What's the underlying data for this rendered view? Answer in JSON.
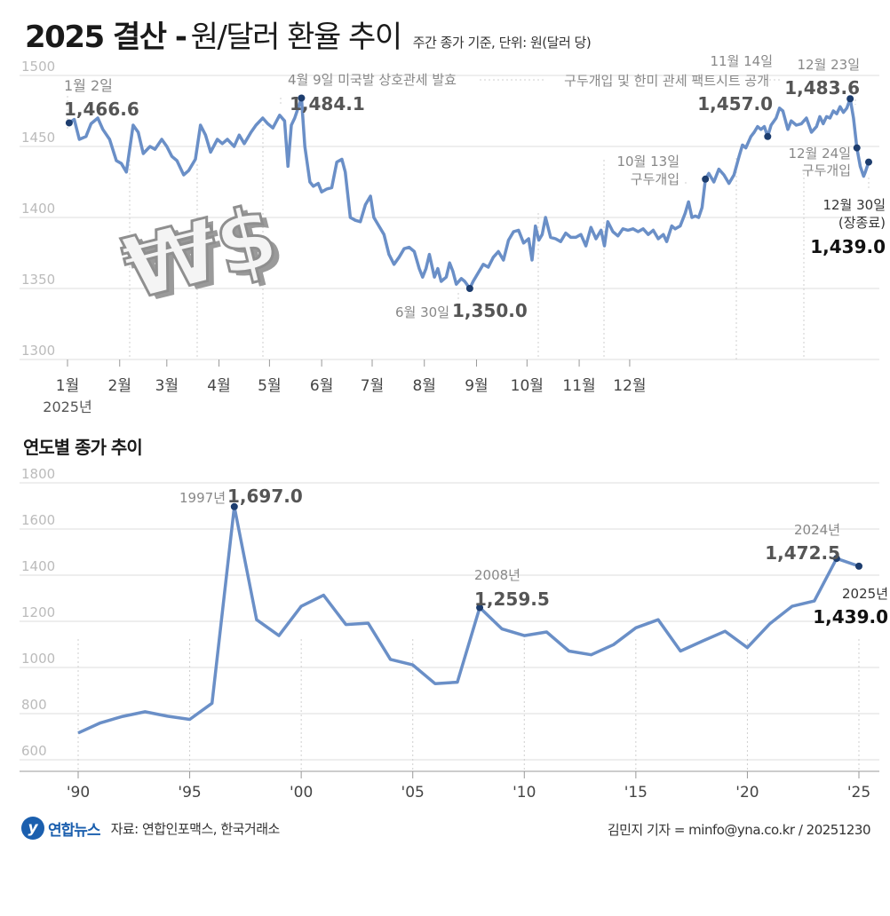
{
  "header": {
    "title_bold": "2025 결산 -",
    "title_rest": "원/달러 환율 추이",
    "note": "주간 종가 기준, 단위: 원(달러 당)"
  },
  "section2_title": "연도별 종가 추이",
  "colors": {
    "line": "#6a8fc7",
    "dot": "#1d3d6e",
    "grid": "#d9d9d9",
    "axis_text": "#bbbbbb",
    "label": "#888888",
    "value": "#555555",
    "value_final": "#111111"
  },
  "icon": "won-dollar-3d-icon",
  "chart_data": [
    {
      "type": "line",
      "title": "",
      "xlabel": "",
      "ylabel": "",
      "ylim": [
        1300,
        1500
      ],
      "yticks": [
        1300,
        1350,
        1400,
        1450,
        1500
      ],
      "month_labels": [
        "1월",
        "2월",
        "3월",
        "4월",
        "5월",
        "6월",
        "7월",
        "8월",
        "9월",
        "10월",
        "11월",
        "12월"
      ],
      "month_positions": [
        1,
        32,
        60,
        91,
        121,
        152,
        182,
        213,
        244,
        274,
        305,
        335
      ],
      "year_label": "2025년",
      "grid": "horizontal",
      "series": [
        {
          "values": [
            [
              2,
              1466.6
            ],
            [
              5,
              1469
            ],
            [
              8,
              1455
            ],
            [
              12,
              1457
            ],
            [
              15,
              1466
            ],
            [
              19,
              1470
            ],
            [
              22,
              1462
            ],
            [
              26,
              1455
            ],
            [
              30,
              1440
            ],
            [
              33,
              1438
            ],
            [
              36,
              1432
            ],
            [
              40,
              1465
            ],
            [
              43,
              1460
            ],
            [
              46,
              1445
            ],
            [
              50,
              1450
            ],
            [
              53,
              1448
            ],
            [
              57,
              1455
            ],
            [
              60,
              1450
            ],
            [
              63,
              1443
            ],
            [
              66,
              1440
            ],
            [
              70,
              1430
            ],
            [
              73,
              1433
            ],
            [
              77,
              1441
            ],
            [
              80,
              1465
            ],
            [
              83,
              1458
            ],
            [
              86,
              1446
            ],
            [
              90,
              1455
            ],
            [
              93,
              1452
            ],
            [
              96,
              1455
            ],
            [
              100,
              1450
            ],
            [
              103,
              1458
            ],
            [
              106,
              1452
            ],
            [
              110,
              1460
            ],
            [
              113,
              1465
            ],
            [
              117,
              1470
            ],
            [
              120,
              1466
            ],
            [
              123,
              1463
            ],
            [
              127,
              1472
            ],
            [
              130,
              1468
            ],
            [
              132,
              1436
            ],
            [
              134,
              1465
            ],
            [
              136,
              1470
            ],
            [
              140,
              1484.1
            ],
            [
              142,
              1450
            ],
            [
              145,
              1425
            ],
            [
              147,
              1422
            ],
            [
              150,
              1424
            ],
            [
              152,
              1418
            ],
            [
              155,
              1420
            ],
            [
              158,
              1421
            ],
            [
              161,
              1439
            ],
            [
              164,
              1441
            ],
            [
              166,
              1432
            ],
            [
              169,
              1400
            ],
            [
              172,
              1398
            ],
            [
              175,
              1397
            ],
            [
              178,
              1409
            ],
            [
              181,
              1415
            ],
            [
              183,
              1400
            ],
            [
              186,
              1394
            ],
            [
              189,
              1388
            ],
            [
              192,
              1374
            ],
            [
              195,
              1367
            ],
            [
              198,
              1372
            ],
            [
              201,
              1378
            ],
            [
              204,
              1379
            ],
            [
              207,
              1376
            ],
            [
              210,
              1364
            ],
            [
              212,
              1358
            ],
            [
              214,
              1364
            ],
            [
              216,
              1374
            ],
            [
              219,
              1358
            ],
            [
              221,
              1364
            ],
            [
              223,
              1355
            ],
            [
              226,
              1358
            ],
            [
              228,
              1368
            ],
            [
              230,
              1362
            ],
            [
              232,
              1353
            ],
            [
              235,
              1357
            ],
            [
              237,
              1355
            ],
            [
              240,
              1350.0
            ],
            [
              242,
              1355
            ],
            [
              245,
              1361
            ],
            [
              248,
              1367
            ],
            [
              251,
              1365
            ],
            [
              254,
              1372
            ],
            [
              257,
              1376
            ],
            [
              260,
              1370
            ],
            [
              263,
              1384
            ],
            [
              266,
              1390
            ],
            [
              269,
              1391
            ],
            [
              272,
              1382
            ],
            [
              275,
              1385
            ],
            [
              277,
              1370
            ],
            [
              279,
              1394
            ],
            [
              281,
              1384
            ],
            [
              283,
              1388
            ],
            [
              285,
              1400
            ],
            [
              288,
              1386
            ],
            [
              291,
              1385
            ],
            [
              294,
              1383
            ],
            [
              297,
              1389
            ],
            [
              300,
              1386
            ],
            [
              303,
              1386
            ],
            [
              306,
              1388
            ],
            [
              309,
              1380
            ],
            [
              312,
              1393
            ],
            [
              315,
              1385
            ],
            [
              318,
              1391
            ],
            [
              320,
              1380
            ],
            [
              322,
              1397
            ],
            [
              325,
              1390
            ],
            [
              328,
              1387
            ],
            [
              331,
              1392
            ],
            [
              334,
              1391
            ],
            [
              337,
              1392
            ],
            [
              340,
              1390
            ],
            [
              343,
              1392
            ],
            [
              346,
              1388
            ],
            [
              349,
              1391
            ],
            [
              352,
              1385
            ],
            [
              355,
              1388
            ],
            [
              357,
              1383
            ],
            [
              360,
              1394
            ],
            [
              362,
              1392
            ],
            [
              365,
              1394
            ],
            [
              368,
              1403
            ],
            [
              370,
              1411
            ],
            [
              372,
              1400
            ],
            [
              374,
              1401
            ],
            [
              376,
              1400
            ],
            [
              378,
              1407
            ],
            [
              380,
              1427
            ],
            [
              382,
              1431
            ],
            [
              385,
              1425
            ],
            [
              388,
              1434
            ],
            [
              391,
              1430
            ],
            [
              394,
              1424
            ],
            [
              397,
              1430
            ],
            [
              400,
              1443
            ],
            [
              402,
              1451
            ],
            [
              404,
              1449
            ],
            [
              407,
              1457.0
            ],
            [
              409,
              1460
            ],
            [
              411,
              1464
            ],
            [
              413,
              1462
            ],
            [
              415,
              1464
            ],
            [
              417,
              1457.0
            ],
            [
              419,
              1465
            ],
            [
              422,
              1470
            ],
            [
              424,
              1477
            ],
            [
              426,
              1475
            ],
            [
              429,
              1462
            ],
            [
              431,
              1468
            ],
            [
              434,
              1465
            ],
            [
              437,
              1466
            ],
            [
              440,
              1470
            ],
            [
              443,
              1460
            ],
            [
              446,
              1464
            ],
            [
              448,
              1471
            ],
            [
              450,
              1466
            ],
            [
              452,
              1471
            ],
            [
              454,
              1470
            ],
            [
              456,
              1475
            ],
            [
              458,
              1473
            ],
            [
              460,
              1478
            ],
            [
              462,
              1474
            ],
            [
              464,
              1477
            ],
            [
              466,
              1483.6
            ],
            [
              468,
              1470
            ],
            [
              470,
              1449
            ],
            [
              472,
              1436
            ],
            [
              474,
              1429
            ],
            [
              475,
              1432
            ],
            [
              477,
              1439.0
            ]
          ]
        }
      ],
      "markers": [
        [
          2,
          1466.6
        ],
        [
          140,
          1484.1
        ],
        [
          240,
          1350.0
        ],
        [
          380,
          1427
        ],
        [
          417,
          1457.0
        ],
        [
          466,
          1483.6
        ],
        [
          470,
          1449
        ],
        [
          477,
          1439.0
        ]
      ],
      "annotations": [
        {
          "date": "1월 2일",
          "value": "1,466.6"
        },
        {
          "date": "4월 9일 미국발 상호관세 발효",
          "value": "1,484.1"
        },
        {
          "date": "6월 30일",
          "value": "1,350.0"
        },
        {
          "date": "10월 13일",
          "note": "구두개입"
        },
        {
          "date": "11월 14일",
          "value": "1,457.0"
        },
        {
          "date": "구두개입 및 한미 관세 팩트시트 공개"
        },
        {
          "date": "12월 23일",
          "value": "1,483.6"
        },
        {
          "date": "12월 24일",
          "note": "구두개입"
        },
        {
          "date": "12월 30일",
          "note": "(장종료)",
          "value": "1,439.0"
        }
      ]
    },
    {
      "type": "line",
      "title": "",
      "xlabel": "",
      "ylabel": "",
      "ylim": [
        600,
        1800
      ],
      "yticks": [
        600,
        800,
        1000,
        1200,
        1400,
        1600,
        1800
      ],
      "x_tick_labels": [
        "'90",
        "'95",
        "'00",
        "'05",
        "'10",
        "'15",
        "'20",
        "'25"
      ],
      "x_ticks": [
        1990,
        1995,
        2000,
        2005,
        2010,
        2015,
        2020,
        2025
      ],
      "grid": "horizontal",
      "series": [
        {
          "x": [
            1990,
            1991,
            1992,
            1993,
            1994,
            1995,
            1996,
            1997,
            1998,
            1999,
            2000,
            2001,
            2002,
            2003,
            2004,
            2005,
            2006,
            2007,
            2008,
            2009,
            2010,
            2011,
            2012,
            2013,
            2014,
            2015,
            2016,
            2017,
            2018,
            2019,
            2020,
            2021,
            2022,
            2023,
            2024,
            2025
          ],
          "values": [
            716,
            760,
            788,
            808,
            789,
            775,
            845,
            1697.0,
            1207,
            1138,
            1265,
            1313,
            1186,
            1192,
            1035,
            1011,
            930,
            936,
            1259.5,
            1167,
            1138,
            1154,
            1071,
            1055,
            1099,
            1172,
            1207,
            1071,
            1115,
            1157,
            1086,
            1189,
            1265,
            1288,
            1472.5,
            1439.0
          ]
        }
      ],
      "markers": [
        [
          1997,
          1697.0
        ],
        [
          2008,
          1259.5
        ],
        [
          2024,
          1472.5
        ],
        [
          2025,
          1439.0
        ]
      ],
      "annotations": [
        {
          "year": "1997년",
          "value": "1,697.0"
        },
        {
          "year": "2008년",
          "value": "1,259.5"
        },
        {
          "year": "2024년",
          "value": "1,472.5"
        },
        {
          "year": "2025년",
          "value": "1,439.0"
        }
      ]
    }
  ],
  "footer": {
    "logo_mark": "y",
    "logo_text": "연합뉴스",
    "source": "자료: 연합인포맥스, 한국거래소",
    "credit": "김민지 기자 = minfo@yna.co.kr / 20251230"
  }
}
